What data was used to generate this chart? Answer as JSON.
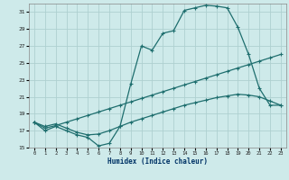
{
  "xlabel": "Humidex (Indice chaleur)",
  "bg_color": "#ceeaea",
  "grid_color": "#aed0d0",
  "line_color": "#1e6e6e",
  "xlim": [
    -0.5,
    23.5
  ],
  "ylim": [
    15,
    32
  ],
  "xticks": [
    0,
    1,
    2,
    3,
    4,
    5,
    6,
    7,
    8,
    9,
    10,
    11,
    12,
    13,
    14,
    15,
    16,
    17,
    18,
    19,
    20,
    21,
    22,
    23
  ],
  "yticks": [
    15,
    17,
    19,
    21,
    23,
    25,
    27,
    29,
    31
  ],
  "line1_x": [
    0,
    1,
    2,
    3,
    4,
    5,
    6,
    7,
    8,
    9,
    10,
    11,
    12,
    13,
    14,
    15,
    16,
    17,
    18,
    19,
    20,
    21,
    22,
    23
  ],
  "line1_y": [
    18.0,
    17.0,
    17.5,
    17.0,
    16.5,
    16.2,
    15.2,
    15.5,
    17.5,
    22.5,
    27.0,
    26.5,
    28.5,
    28.8,
    31.2,
    31.5,
    31.8,
    31.7,
    31.5,
    29.2,
    26.0,
    22.0,
    20.0,
    20.0
  ],
  "line2_x": [
    0,
    1,
    2,
    3,
    4,
    5,
    6,
    7,
    8,
    9,
    10,
    11,
    12,
    13,
    14,
    15,
    16,
    17,
    18,
    19,
    20,
    21,
    22,
    23
  ],
  "line2_y": [
    18.0,
    17.3,
    17.6,
    18.0,
    18.4,
    18.8,
    19.2,
    19.6,
    20.0,
    20.4,
    20.8,
    21.2,
    21.6,
    22.0,
    22.4,
    22.8,
    23.2,
    23.6,
    24.0,
    24.4,
    24.8,
    25.2,
    25.6,
    26.0
  ],
  "line3_x": [
    0,
    1,
    2,
    3,
    4,
    5,
    6,
    7,
    8,
    9,
    10,
    11,
    12,
    13,
    14,
    15,
    16,
    17,
    18,
    19,
    20,
    21,
    22,
    23
  ],
  "line3_y": [
    18.0,
    17.5,
    17.8,
    17.3,
    16.8,
    16.5,
    16.6,
    17.0,
    17.5,
    18.0,
    18.4,
    18.8,
    19.2,
    19.6,
    20.0,
    20.3,
    20.6,
    20.9,
    21.1,
    21.3,
    21.2,
    21.0,
    20.5,
    20.0
  ]
}
